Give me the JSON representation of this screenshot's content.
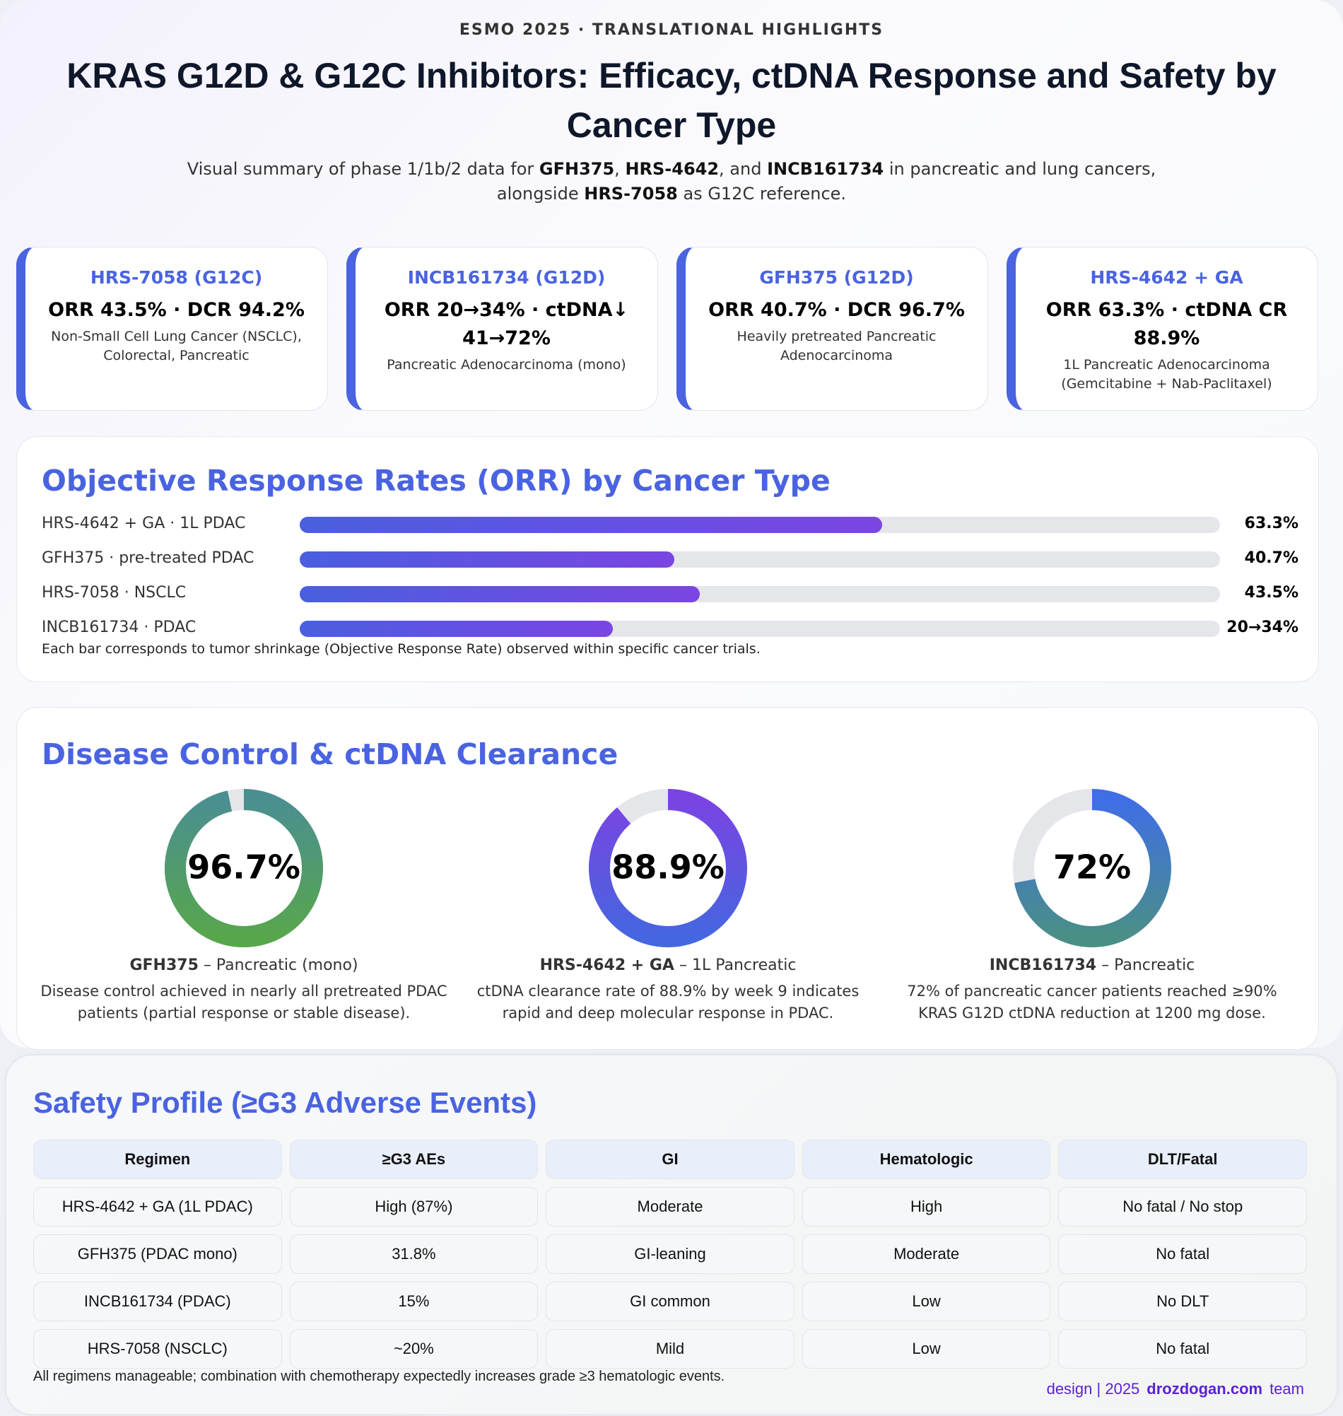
{
  "header": {
    "kicker": "ESMO 2025 · TRANSLATIONAL HIGHLIGHTS",
    "title": "KRAS G12D & G12C Inhibitors: Efficacy, ctDNA Response and Safety by Cancer Type",
    "subtitle": [
      {
        "text": "Visual summary of phase 1/1b/2 data for "
      },
      {
        "text": "GFH375",
        "bold": true
      },
      {
        "text": ", "
      },
      {
        "text": "HRS-4642",
        "bold": true
      },
      {
        "text": ", and "
      },
      {
        "text": "INCB161734",
        "bold": true
      },
      {
        "text": " in pancreatic and lung cancers, alongside "
      },
      {
        "text": "HRS-7058",
        "bold": true
      },
      {
        "text": " as G12C reference."
      }
    ]
  },
  "cards": [
    {
      "title": "HRS-7058 (G12C)",
      "metric": "ORR 43.5% · DCR 94.2%",
      "detail": "Non-Small Cell Lung Cancer (NSCLC), Colorectal, Pancreatic"
    },
    {
      "title": "INCB161734 (G12D)",
      "metric": "ORR 20→34% · ctDNA↓ 41→72%",
      "detail": "Pancreatic Adenocarcinoma (mono)"
    },
    {
      "title": "GFH375 (G12D)",
      "metric": "ORR 40.7% · DCR 96.7%",
      "detail": "Heavily pretreated Pancreatic Adenocarcinoma"
    },
    {
      "title": "HRS-4642 + GA",
      "metric": "ORR 63.3% · ctDNA CR 88.9%",
      "detail": "1L Pancreatic Adenocarcinoma (Gemcitabine + Nab-Paclitaxel)"
    }
  ],
  "orr": {
    "type": "bar",
    "title": "Objective Response Rates (ORR) by Cancer Type",
    "categories": [
      "HRS-4642 + GA · 1L PDAC",
      "GFH375 · pre-treated PDAC",
      "HRS-7058 · NSCLC",
      "INCB161734 · PDAC"
    ],
    "values": [
      63.3,
      40.7,
      43.5,
      34
    ],
    "value_labels": [
      "63.3%",
      "40.7%",
      "43.5%",
      "20→34%"
    ],
    "xlim": [
      0,
      100
    ],
    "colors": [
      "#4a5fe0",
      "#7b45e2"
    ],
    "note": "Each bar corresponds to tumor shrinkage (Objective Response Rate) observed within specific cancer trials."
  },
  "control": {
    "type": "donut",
    "title": "Disease Control & ctDNA Clearance",
    "max": 100,
    "items": [
      {
        "value": 96.7,
        "label": "96.7%",
        "name": "GFH375",
        "caption": " – Pancreatic (mono)",
        "description": "Disease control achieved in nearly all pretreated PDAC patients (partial response or stable disease).",
        "colors": [
          "#4a8f90",
          "#58a64c"
        ]
      },
      {
        "value": 88.9,
        "label": "88.9%",
        "name": "HRS-4642 + GA",
        "caption": " – 1L Pancreatic",
        "description": "ctDNA clearance rate of 88.9% by week 9 indicates rapid and deep molecular response in PDAC.",
        "colors": [
          "#7a44e2",
          "#4566e0"
        ]
      },
      {
        "value": 72,
        "label": "72%",
        "name": "INCB161734",
        "caption": " – Pancreatic",
        "description": "72% of pancreatic cancer patients reached ≥90% KRAS G12D ctDNA reduction at 1200 mg dose.",
        "colors": [
          "#3f6ee6",
          "#4a8f86"
        ]
      }
    ]
  },
  "safety": {
    "title": "Safety Profile (≥G3 Adverse Events)",
    "columns": [
      "Regimen",
      "≥G3 AEs",
      "GI",
      "Hematologic",
      "DLT/Fatal"
    ],
    "rows": [
      [
        "HRS-4642 + GA (1L PDAC)",
        "High (87%)",
        "Moderate",
        "High",
        "No fatal / No stop"
      ],
      [
        "GFH375 (PDAC mono)",
        "31.8%",
        "GI-leaning",
        "Moderate",
        "No fatal"
      ],
      [
        "INCB161734 (PDAC)",
        "15%",
        "GI common",
        "Low",
        "No DLT"
      ],
      [
        "HRS-7058 (NSCLC)",
        "~20%",
        "Mild",
        "Low",
        "No fatal"
      ]
    ],
    "note": "All regimens manageable; combination with chemotherapy expectedly increases grade ≥3 hematologic events."
  },
  "footer": [
    {
      "text": "design | 2025"
    },
    {
      "text": "drozdogan.com",
      "bold": true
    },
    {
      "text": "team"
    }
  ]
}
